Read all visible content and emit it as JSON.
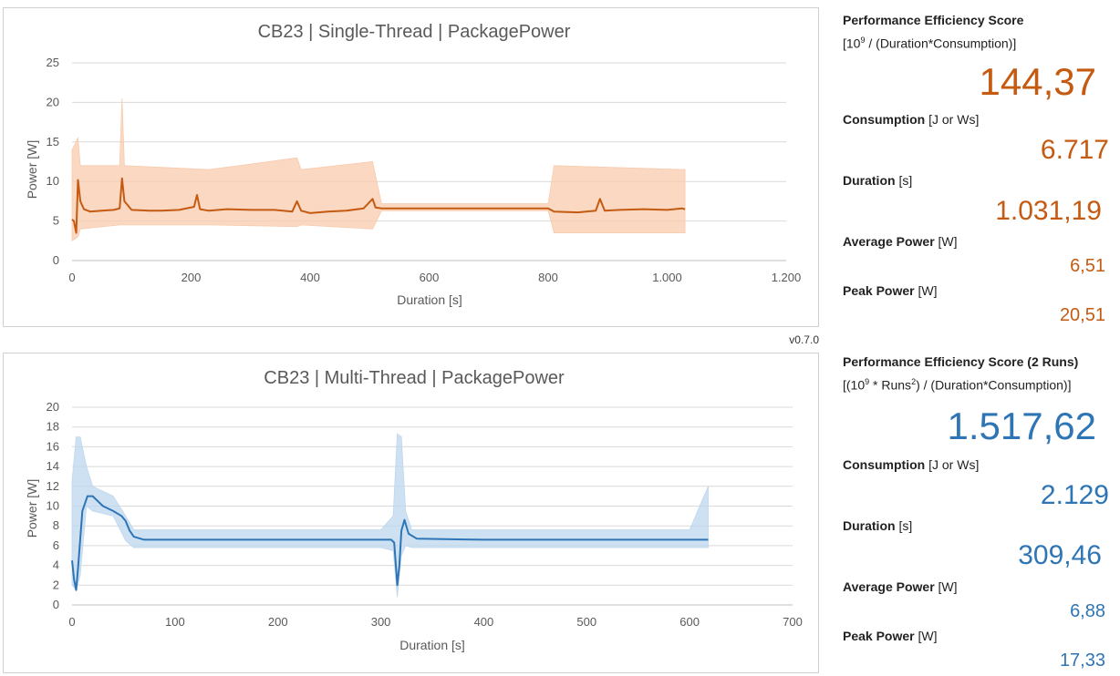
{
  "version": "v0.7.0",
  "colors": {
    "single": "#c55a11",
    "multi": "#2e75b6",
    "single_band": "#f8cbad",
    "multi_band": "#bdd7ee"
  },
  "chart_data": [
    {
      "type": "line",
      "title": "CB23 | Single-Thread | PackagePower",
      "xlabel": "Duration [s]",
      "ylabel": "Power [W]",
      "xlim": [
        0,
        1200
      ],
      "ylim": [
        0,
        25
      ],
      "xticks": [
        0,
        200,
        400,
        600,
        800,
        1000,
        1200
      ],
      "xtick_labels": [
        "0",
        "200",
        "400",
        "600",
        "800",
        "1.000",
        "1.200"
      ],
      "yticks": [
        0,
        5,
        10,
        15,
        20,
        25
      ],
      "ytick_labels": [
        "0",
        "5",
        "10",
        "15",
        "20",
        "25"
      ],
      "grid": true,
      "series": [
        {
          "color": "#c55a11",
          "x": [
            0,
            3,
            7,
            10,
            14,
            20,
            30,
            50,
            70,
            80,
            84,
            88,
            100,
            130,
            150,
            180,
            205,
            210,
            215,
            230,
            260,
            300,
            340,
            370,
            378,
            385,
            400,
            430,
            460,
            490,
            505,
            510,
            520,
            600,
            700,
            800,
            810,
            850,
            880,
            887,
            895,
            920,
            960,
            1000,
            1025,
            1030
          ],
          "y": [
            5.2,
            5.0,
            3.5,
            10.2,
            7.5,
            6.5,
            6.2,
            6.3,
            6.4,
            6.6,
            10.4,
            7.5,
            6.4,
            6.3,
            6.3,
            6.4,
            6.8,
            8.3,
            6.5,
            6.3,
            6.5,
            6.4,
            6.4,
            6.2,
            7.5,
            6.3,
            6.0,
            6.2,
            6.3,
            6.6,
            7.8,
            6.7,
            6.6,
            6.6,
            6.6,
            6.6,
            6.2,
            6.1,
            6.3,
            7.8,
            6.3,
            6.4,
            6.5,
            6.4,
            6.6,
            6.5
          ]
        },
        {
          "color": "#f8cbad",
          "x": [
            0,
            10,
            14,
            80,
            84,
            88,
            230,
            378,
            385,
            505,
            520,
            800,
            810,
            1030
          ],
          "y_min": [
            2.5,
            3.0,
            4.0,
            4.5,
            4.5,
            4.5,
            4.5,
            4.3,
            4.5,
            4.0,
            6.3,
            6.3,
            3.5,
            3.5
          ],
          "y_max": [
            14.0,
            15.5,
            12.0,
            12.0,
            20.5,
            12.0,
            11.5,
            13.0,
            11.5,
            12.5,
            7.2,
            7.2,
            12.0,
            11.5
          ]
        }
      ]
    },
    {
      "type": "line",
      "title": "CB23 | Multi-Thread | PackagePower",
      "xlabel": "Duration [s]",
      "ylabel": "Power [W]",
      "xlim": [
        0,
        700
      ],
      "ylim": [
        0,
        20
      ],
      "xticks": [
        0,
        100,
        200,
        300,
        400,
        500,
        600,
        700
      ],
      "xtick_labels": [
        "0",
        "100",
        "200",
        "300",
        "400",
        "500",
        "600",
        "700"
      ],
      "yticks": [
        0,
        2,
        4,
        6,
        8,
        10,
        12,
        14,
        16,
        18,
        20
      ],
      "ytick_labels": [
        "0",
        "2",
        "4",
        "6",
        "8",
        "10",
        "12",
        "14",
        "16",
        "18",
        "20"
      ],
      "grid": true,
      "series": [
        {
          "color": "#2e75b6",
          "x": [
            0,
            2,
            4,
            6,
            10,
            15,
            20,
            30,
            40,
            48,
            52,
            56,
            60,
            70,
            100,
            200,
            300,
            310,
            313,
            316,
            318,
            320,
            323,
            327,
            335,
            400,
            500,
            600,
            618
          ],
          "y": [
            4.5,
            2.5,
            1.5,
            4.0,
            9.5,
            11.0,
            11.0,
            10.0,
            9.5,
            9.0,
            8.5,
            7.5,
            6.9,
            6.6,
            6.6,
            6.6,
            6.6,
            6.6,
            6.3,
            2.0,
            4.0,
            7.5,
            8.6,
            7.2,
            6.7,
            6.6,
            6.6,
            6.6,
            6.6
          ]
        },
        {
          "color": "#bdd7ee",
          "x": [
            0,
            4,
            8,
            14,
            20,
            40,
            52,
            60,
            300,
            312,
            316,
            320,
            324,
            330,
            600,
            618
          ],
          "y_min": [
            2.0,
            1.5,
            3.0,
            10.0,
            9.5,
            9.0,
            6.5,
            5.8,
            5.8,
            5.5,
            0.8,
            5.0,
            6.0,
            5.8,
            5.8,
            5.8
          ],
          "y_max": [
            12.5,
            17.0,
            17.0,
            14.0,
            12.0,
            11.0,
            9.0,
            7.6,
            7.6,
            9.0,
            17.3,
            17.0,
            9.5,
            7.6,
            7.6,
            12.0
          ]
        }
      ]
    }
  ],
  "single_panel": {
    "score_label": "Performance Efficiency Score",
    "formula_open": "[10",
    "formula_exp": "9",
    "formula_rest": " / (Duration*Consumption)]",
    "score_value": "144,37",
    "consumption_label": "Consumption",
    "consumption_unit": " [J or Ws]",
    "consumption_value": "6.717",
    "duration_label": "Duration",
    "duration_unit": " [s]",
    "duration_value": "1.031,19",
    "avg_label": "Average Power",
    "avg_unit": " [W]",
    "avg_value": "6,51",
    "peak_label": "Peak Power",
    "peak_unit": " [W]",
    "peak_value": "20,51"
  },
  "multi_panel": {
    "score_label": "Performance Efficiency Score (2 Runs)",
    "formula_open": "[(10",
    "formula_exp": "9",
    "formula_mid": " * Runs",
    "formula_exp2": "2",
    "formula_rest": ") / (Duration*Consumption)]",
    "score_value": "1.517,62",
    "consumption_label": "Consumption",
    "consumption_unit": " [J or Ws]",
    "consumption_value": "2.129",
    "duration_label": "Duration",
    "duration_unit": " [s]",
    "duration_value": "309,46",
    "avg_label": "Average Power",
    "avg_unit": " [W]",
    "avg_value": "6,88",
    "peak_label": "Peak Power",
    "peak_unit": " [W]",
    "peak_value": "17,33"
  }
}
